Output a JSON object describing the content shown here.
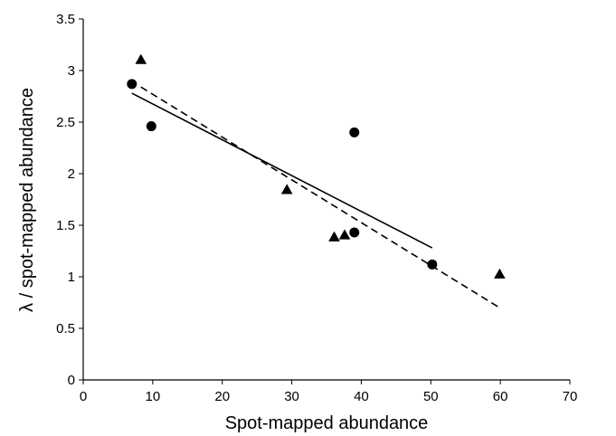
{
  "chart_data": {
    "type": "scatter",
    "title": "",
    "xlabel": "Spot-mapped abundance",
    "ylabel": "λ / spot-mapped abundance",
    "xlim": [
      0,
      70
    ],
    "ylim": [
      0,
      3.5
    ],
    "x_ticks": [
      "0",
      "10",
      "20",
      "30",
      "40",
      "50",
      "60",
      "70"
    ],
    "y_ticks": [
      "0",
      "0.5",
      "1",
      "1.5",
      "2",
      "2.5",
      "3",
      "3.5"
    ],
    "grid": false,
    "legend": "none",
    "series": [
      {
        "marker": "circle",
        "color": "#000000",
        "points": [
          {
            "x": 7.0,
            "y": 2.87
          },
          {
            "x": 9.8,
            "y": 2.46
          },
          {
            "x": 39.0,
            "y": 2.4
          },
          {
            "x": 39.0,
            "y": 1.43
          },
          {
            "x": 50.2,
            "y": 1.12
          }
        ]
      },
      {
        "marker": "triangle",
        "color": "#000000",
        "points": [
          {
            "x": 8.3,
            "y": 3.1
          },
          {
            "x": 29.3,
            "y": 1.84
          },
          {
            "x": 36.1,
            "y": 1.38
          },
          {
            "x": 37.6,
            "y": 1.4
          },
          {
            "x": 59.9,
            "y": 1.02
          }
        ]
      }
    ],
    "trendlines": [
      {
        "style": "solid",
        "color": "#000000",
        "x": [
          7.0,
          50.2
        ],
        "y": [
          2.78,
          1.28
        ]
      },
      {
        "style": "dashed",
        "color": "#000000",
        "x": [
          8.3,
          59.9
        ],
        "y": [
          2.84,
          0.7
        ]
      }
    ]
  }
}
